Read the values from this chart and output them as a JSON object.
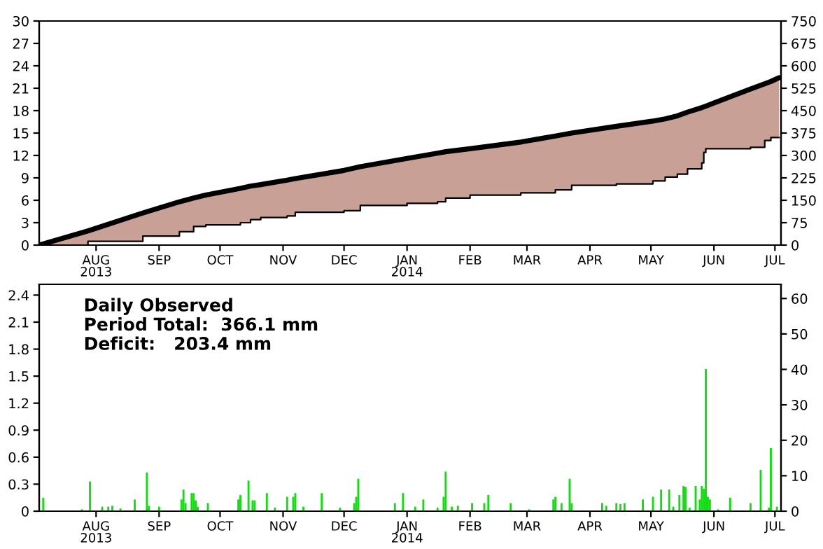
{
  "chart_data": [
    {
      "type": "line",
      "x": [
        "2013-07-04",
        "2013-07-28",
        "2013-08-24",
        "2013-09-11",
        "2013-09-18",
        "2013-09-24",
        "2013-10-11",
        "2013-10-16",
        "2013-10-21",
        "2013-11-03",
        "2013-11-07",
        "2013-12-01",
        "2013-12-09",
        "2014-01-01",
        "2014-01-16",
        "2014-01-20",
        "2014-02-01",
        "2014-02-26",
        "2014-03-15",
        "2014-03-23",
        "2014-04-14",
        "2014-05-02",
        "2014-05-08",
        "2014-05-14",
        "2014-05-19",
        "2014-05-26",
        "2014-05-27",
        "2014-05-28",
        "2014-06-19",
        "2014-06-26",
        "2014-06-29",
        "2014-07-03"
      ],
      "series": [
        {
          "type": "area",
          "color": "#c8a096",
          "values": [
            0.0,
            1.9,
            4.3,
            5.8,
            6.3,
            6.7,
            7.6,
            7.9,
            8.1,
            8.7,
            8.9,
            10.0,
            10.5,
            11.6,
            12.3,
            12.5,
            12.9,
            13.8,
            14.6,
            15.0,
            15.9,
            16.6,
            16.9,
            17.3,
            17.8,
            18.4,
            18.5,
            18.6,
            20.9,
            21.6,
            21.9,
            22.4
          ]
        },
        {
          "type": "step",
          "color": "#000000",
          "values": [
            0.0,
            0.5,
            1.2,
            1.8,
            2.5,
            2.7,
            3.0,
            3.4,
            3.7,
            3.9,
            4.4,
            4.6,
            5.3,
            5.6,
            5.8,
            6.3,
            6.7,
            7.0,
            7.4,
            8.0,
            8.2,
            8.6,
            9.1,
            9.5,
            10.2,
            11.0,
            12.4,
            12.9,
            13.1,
            14.0,
            14.4,
            14.4
          ]
        }
      ],
      "xlim": [
        "2013-07-04",
        "2014-07-04"
      ],
      "xticks": [
        {
          "value": "2013-08-01",
          "label": "AUG\n2013"
        },
        {
          "value": "2013-09-01",
          "label": "SEP"
        },
        {
          "value": "2013-10-01",
          "label": "OCT"
        },
        {
          "value": "2013-11-01",
          "label": "NOV"
        },
        {
          "value": "2013-12-01",
          "label": "DEC"
        },
        {
          "value": "2014-01-01",
          "label": "JAN\n2014"
        },
        {
          "value": "2014-02-01",
          "label": "FEB"
        },
        {
          "value": "2014-03-01",
          "label": "MAR"
        },
        {
          "value": "2014-04-01",
          "label": "APR"
        },
        {
          "value": "2014-05-01",
          "label": "MAY"
        },
        {
          "value": "2014-06-01",
          "label": "JUN"
        },
        {
          "value": "2014-07-01",
          "label": "JUL"
        }
      ],
      "ylim": [
        0,
        30
      ],
      "yticks": [
        0,
        3,
        6,
        9,
        12,
        15,
        18,
        21,
        24,
        27,
        30
      ],
      "y2lim": [
        0,
        750
      ],
      "y2ticks": [
        0,
        75,
        150,
        225,
        300,
        375,
        450,
        525,
        600,
        675,
        750
      ],
      "grid": false,
      "legend": false
    },
    {
      "type": "bar",
      "x": [
        "2013-07-06",
        "2013-07-25",
        "2013-07-29",
        "2013-08-04",
        "2013-08-07",
        "2013-08-09",
        "2013-08-13",
        "2013-08-20",
        "2013-08-26",
        "2013-08-27",
        "2013-09-01",
        "2013-09-12",
        "2013-09-13",
        "2013-09-14",
        "2013-09-17",
        "2013-09-18",
        "2013-09-19",
        "2013-09-20",
        "2013-09-25",
        "2013-10-10",
        "2013-10-11",
        "2013-10-15",
        "2013-10-17",
        "2013-10-18",
        "2013-10-24",
        "2013-10-28",
        "2013-11-03",
        "2013-11-06",
        "2013-11-07",
        "2013-11-11",
        "2013-11-20",
        "2013-11-29",
        "2013-12-06",
        "2013-12-07",
        "2013-12-08",
        "2013-12-26",
        "2013-12-30",
        "2014-01-05",
        "2014-01-09",
        "2014-01-16",
        "2014-01-19",
        "2014-01-20",
        "2014-01-23",
        "2014-01-26",
        "2014-02-02",
        "2014-02-08",
        "2014-02-10",
        "2014-02-21",
        "2014-03-02",
        "2014-03-14",
        "2014-03-15",
        "2014-03-18",
        "2014-03-22",
        "2014-03-23",
        "2014-04-07",
        "2014-04-09",
        "2014-04-14",
        "2014-04-16",
        "2014-04-18",
        "2014-04-27",
        "2014-05-02",
        "2014-05-06",
        "2014-05-10",
        "2014-05-12",
        "2014-05-15",
        "2014-05-17",
        "2014-05-18",
        "2014-05-20",
        "2014-05-23",
        "2014-05-25",
        "2014-05-26",
        "2014-05-27",
        "2014-05-28",
        "2014-05-29",
        "2014-05-30",
        "2014-06-03",
        "2014-06-09",
        "2014-06-19",
        "2014-06-24",
        "2014-06-28",
        "2014-06-29",
        "2014-07-02"
      ],
      "series": [
        {
          "color": "#11dd11",
          "values": [
            0.15,
            0.02,
            0.33,
            0.05,
            0.05,
            0.06,
            0.03,
            0.13,
            0.43,
            0.06,
            0.05,
            0.13,
            0.24,
            0.09,
            0.2,
            0.2,
            0.12,
            0.05,
            0.09,
            0.13,
            0.18,
            0.34,
            0.12,
            0.12,
            0.2,
            0.04,
            0.16,
            0.16,
            0.2,
            0.05,
            0.2,
            0.04,
            0.09,
            0.16,
            0.36,
            0.09,
            0.2,
            0.05,
            0.13,
            0.04,
            0.16,
            0.44,
            0.05,
            0.06,
            0.09,
            0.09,
            0.18,
            0.09,
            0.02,
            0.13,
            0.16,
            0.09,
            0.36,
            0.09,
            0.09,
            0.06,
            0.09,
            0.08,
            0.09,
            0.13,
            0.16,
            0.24,
            0.24,
            0.05,
            0.18,
            0.28,
            0.27,
            0.04,
            0.28,
            0.13,
            0.28,
            0.25,
            1.58,
            0.16,
            0.13,
            0.02,
            0.15,
            0.09,
            0.46,
            0.04,
            0.7,
            0.05
          ]
        }
      ],
      "xlim": [
        "2013-07-04",
        "2014-07-04"
      ],
      "xticks": [
        {
          "value": "2013-08-01",
          "label": "AUG\n2013"
        },
        {
          "value": "2013-09-01",
          "label": "SEP"
        },
        {
          "value": "2013-10-01",
          "label": "OCT"
        },
        {
          "value": "2013-11-01",
          "label": "NOV"
        },
        {
          "value": "2013-12-01",
          "label": "DEC"
        },
        {
          "value": "2014-01-01",
          "label": "JAN\n2014"
        },
        {
          "value": "2014-02-01",
          "label": "FEB"
        },
        {
          "value": "2014-03-01",
          "label": "MAR"
        },
        {
          "value": "2014-04-01",
          "label": "APR"
        },
        {
          "value": "2014-05-01",
          "label": "MAY"
        },
        {
          "value": "2014-06-01",
          "label": "JUN"
        },
        {
          "value": "2014-07-01",
          "label": "JUL"
        }
      ],
      "ylim": [
        0,
        2.52
      ],
      "yticks": [
        0,
        0.3,
        0.6,
        0.9,
        1.2,
        1.5,
        1.8,
        2.1,
        2.4
      ],
      "y2lim": [
        0,
        64
      ],
      "y2ticks": [
        0,
        10,
        20,
        30,
        40,
        50,
        60
      ],
      "annotations": [
        "Daily Observed",
        "Period Total:  366.1 mm",
        "Deficit:   203.4 mm"
      ],
      "grid": false,
      "legend": false
    }
  ]
}
